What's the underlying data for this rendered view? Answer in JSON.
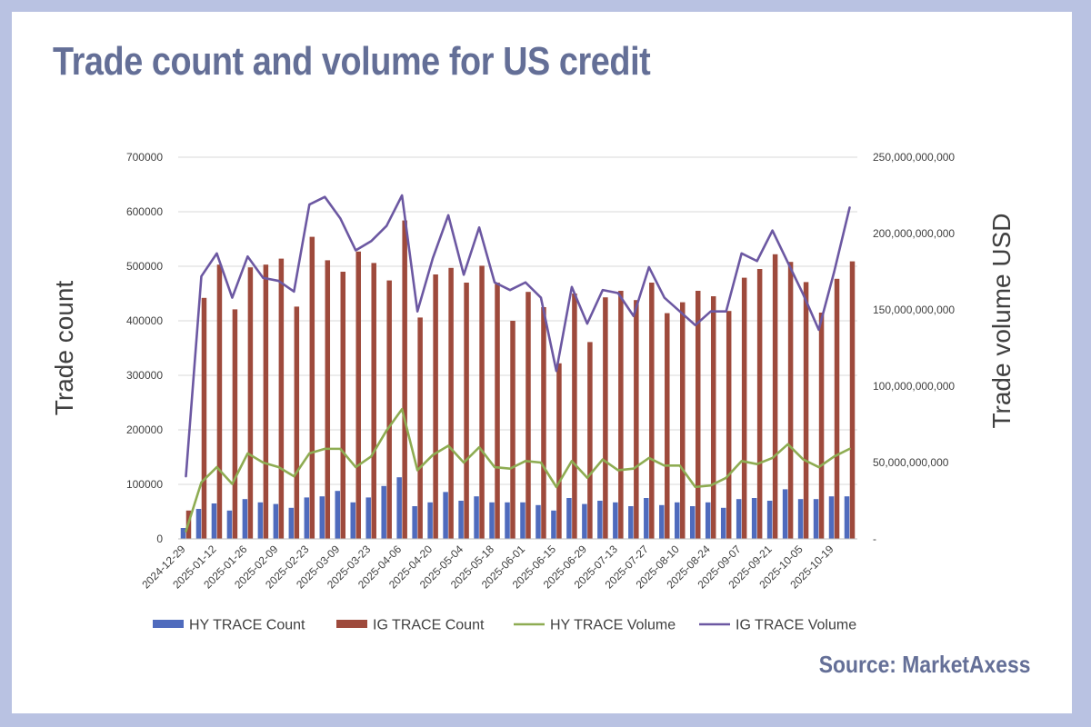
{
  "title": "Trade count and volume for US credit",
  "source": "Source: MarketAxess",
  "chart_data": {
    "type": "bar",
    "ylabel": "Trade count",
    "ylabel_right": "Trade volume USD",
    "ylim": [
      0,
      700000
    ],
    "ylim_right": [
      0,
      250000000000
    ],
    "y_ticks": [
      "0",
      "100000",
      "200000",
      "300000",
      "400000",
      "500000",
      "600000",
      "700000"
    ],
    "y_right_ticks": [
      "-",
      "50,000,000,000",
      "100,000,000,000",
      "150,000,000,000",
      "200,000,000,000",
      "250,000,000,000"
    ],
    "x_tick_labels": [
      "2024-12-29",
      "2025-01-12",
      "2025-01-26",
      "2025-02-09",
      "2025-02-23",
      "2025-03-09",
      "2025-03-23",
      "2025-04-06",
      "2025-04-20",
      "2025-05-04",
      "2025-05-18",
      "2025-06-01",
      "2025-06-15",
      "2025-06-29",
      "2025-07-13",
      "2025-07-27",
      "2025-08-10",
      "2025-08-24",
      "2025-09-07",
      "2025-09-21",
      "2025-10-05",
      "2025-10-19"
    ],
    "categories": [
      "2024-12-29",
      "2025-01-05",
      "2025-01-12",
      "2025-01-19",
      "2025-01-26",
      "2025-02-02",
      "2025-02-09",
      "2025-02-16",
      "2025-02-23",
      "2025-03-02",
      "2025-03-09",
      "2025-03-16",
      "2025-03-23",
      "2025-03-30",
      "2025-04-06",
      "2025-04-13",
      "2025-04-20",
      "2025-04-27",
      "2025-05-04",
      "2025-05-11",
      "2025-05-18",
      "2025-05-25",
      "2025-06-01",
      "2025-06-08",
      "2025-06-15",
      "2025-06-22",
      "2025-06-29",
      "2025-07-06",
      "2025-07-13",
      "2025-07-20",
      "2025-07-27",
      "2025-08-03",
      "2025-08-10",
      "2025-08-17",
      "2025-08-24",
      "2025-08-31",
      "2025-09-07",
      "2025-09-14",
      "2025-09-21",
      "2025-09-28",
      "2025-10-05",
      "2025-10-12",
      "2025-10-19",
      "2025-10-26"
    ],
    "series": [
      {
        "name": "HY TRACE Count",
        "kind": "bar",
        "axis": "left",
        "color": "#4f6bbd",
        "values": [
          20000,
          55000,
          65000,
          52000,
          73000,
          67000,
          64000,
          57000,
          76000,
          78000,
          88000,
          67000,
          76000,
          97000,
          113000,
          60000,
          67000,
          86000,
          70000,
          78000,
          67000,
          67000,
          67000,
          62000,
          52000,
          75000,
          64000,
          70000,
          67000,
          60000,
          75000,
          62000,
          67000,
          60000,
          67000,
          57000,
          73000,
          75000,
          70000,
          91000,
          73000,
          73000,
          78000,
          78000
        ]
      },
      {
        "name": "IG TRACE Count",
        "kind": "bar",
        "axis": "left",
        "color": "#9e4a3c",
        "values": [
          52000,
          442000,
          503000,
          421000,
          498000,
          503000,
          514000,
          426000,
          554000,
          511000,
          490000,
          527000,
          506000,
          474000,
          584000,
          406000,
          485000,
          497000,
          470000,
          501000,
          470000,
          400000,
          453000,
          425000,
          322000,
          450000,
          361000,
          443000,
          455000,
          438000,
          470000,
          414000,
          434000,
          455000,
          445000,
          418000,
          479000,
          495000,
          522000,
          508000,
          471000,
          415000,
          477000,
          509000
        ]
      },
      {
        "name": "HY TRACE Volume",
        "kind": "line",
        "axis": "right",
        "color": "#8eac52",
        "values": [
          5000000000,
          37000000000,
          47000000000,
          36000000000,
          56000000000,
          50000000000,
          47000000000,
          41000000000,
          56000000000,
          59000000000,
          59000000000,
          47000000000,
          54000000000,
          71000000000,
          85000000000,
          45000000000,
          55000000000,
          61000000000,
          50000000000,
          60000000000,
          47000000000,
          46000000000,
          51000000000,
          50000000000,
          34000000000,
          51000000000,
          40000000000,
          52000000000,
          45000000000,
          46000000000,
          53000000000,
          48000000000,
          48000000000,
          34000000000,
          35000000000,
          40000000000,
          51000000000,
          49000000000,
          53000000000,
          62000000000,
          52000000000,
          47000000000,
          54000000000,
          59000000000
        ]
      },
      {
        "name": "IG TRACE Volume",
        "kind": "line",
        "axis": "right",
        "color": "#6c58a2",
        "values": [
          41000000000,
          172000000000,
          187000000000,
          158000000000,
          185000000000,
          171000000000,
          169000000000,
          162000000000,
          219000000000,
          224000000000,
          210000000000,
          189000000000,
          195000000000,
          205000000000,
          225000000000,
          149000000000,
          184000000000,
          212000000000,
          173000000000,
          204000000000,
          168000000000,
          163000000000,
          168000000000,
          158000000000,
          110000000000,
          165000000000,
          141000000000,
          163000000000,
          161000000000,
          146000000000,
          178000000000,
          158000000000,
          149000000000,
          140000000000,
          149000000000,
          149000000000,
          187000000000,
          182000000000,
          202000000000,
          181000000000,
          160000000000,
          137000000000,
          175000000000,
          217000000000
        ]
      }
    ],
    "legend": "bottom",
    "grid": true
  }
}
